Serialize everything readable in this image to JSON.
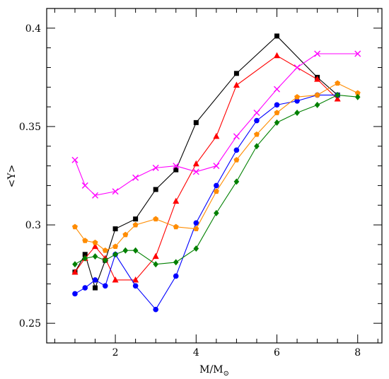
{
  "chart_data": {
    "type": "line",
    "xlabel": "M/M",
    "xlabel_sub": "⊙",
    "ylabel": "<Y>",
    "xlim": [
      0.3,
      8.6
    ],
    "ylim": [
      0.24,
      0.41
    ],
    "xticks_major": [
      2,
      4,
      6,
      8
    ],
    "xticks_minor_step": 0.5,
    "yticks_major": [
      0.25,
      0.3,
      0.35,
      0.4
    ],
    "yticks_major_labels": [
      "0.25",
      "0.3",
      "0.35",
      "0.4"
    ],
    "yticks_minor_step": 0.01,
    "grid": false,
    "series": [
      {
        "color": "#000000",
        "marker": "square",
        "x": [
          1,
          1.25,
          1.5,
          1.75,
          2,
          2.5,
          3,
          3.5,
          4,
          5,
          6,
          7,
          7.5
        ],
        "y": [
          0.276,
          0.285,
          0.268,
          0.282,
          0.298,
          0.303,
          0.318,
          0.328,
          0.352,
          0.377,
          0.396,
          0.375,
          0.366
        ]
      },
      {
        "color": "#ff0000",
        "marker": "triangle",
        "x": [
          1,
          1.25,
          1.5,
          1.75,
          2,
          2.5,
          3,
          3.5,
          4,
          4.5,
          5,
          6,
          7,
          7.5
        ],
        "y": [
          0.276,
          0.283,
          0.289,
          0.283,
          0.272,
          0.272,
          0.284,
          0.312,
          0.331,
          0.345,
          0.371,
          0.386,
          0.374,
          0.364
        ]
      },
      {
        "color": "#ff00ff",
        "marker": "cross",
        "x": [
          1,
          1.25,
          1.5,
          2,
          2.5,
          3,
          3.5,
          4,
          4.5,
          5,
          5.5,
          6,
          6.5,
          7,
          8
        ],
        "y": [
          0.333,
          0.32,
          0.315,
          0.317,
          0.324,
          0.329,
          0.33,
          0.327,
          0.33,
          0.345,
          0.357,
          0.369,
          0.38,
          0.387,
          0.387
        ]
      },
      {
        "color": "#0000ff",
        "marker": "circle",
        "x": [
          1,
          1.25,
          1.5,
          1.75,
          2,
          2.5,
          3,
          3.5,
          4,
          4.5,
          5,
          5.5,
          6,
          6.5,
          7,
          7.5
        ],
        "y": [
          0.265,
          0.268,
          0.272,
          0.269,
          0.285,
          0.269,
          0.257,
          0.274,
          0.301,
          0.32,
          0.338,
          0.353,
          0.361,
          0.363,
          0.366,
          0.366
        ]
      },
      {
        "color": "#ff8c00",
        "marker": "pentagon",
        "x": [
          1,
          1.25,
          1.5,
          1.75,
          2,
          2.25,
          2.5,
          3,
          3.5,
          4,
          4.5,
          5,
          5.5,
          6,
          6.5,
          7,
          7.5,
          8
        ],
        "y": [
          0.299,
          0.292,
          0.291,
          0.287,
          0.289,
          0.295,
          0.3,
          0.303,
          0.299,
          0.298,
          0.317,
          0.333,
          0.346,
          0.357,
          0.365,
          0.366,
          0.372,
          0.367
        ]
      },
      {
        "color": "#008000",
        "marker": "diamond",
        "x": [
          1,
          1.25,
          1.5,
          1.75,
          2,
          2.25,
          2.5,
          3,
          3.5,
          4,
          4.5,
          5,
          5.5,
          6,
          6.5,
          7,
          7.5,
          8
        ],
        "y": [
          0.28,
          0.283,
          0.284,
          0.282,
          0.285,
          0.287,
          0.287,
          0.28,
          0.281,
          0.288,
          0.306,
          0.322,
          0.34,
          0.352,
          0.357,
          0.361,
          0.366,
          0.365
        ]
      }
    ]
  }
}
